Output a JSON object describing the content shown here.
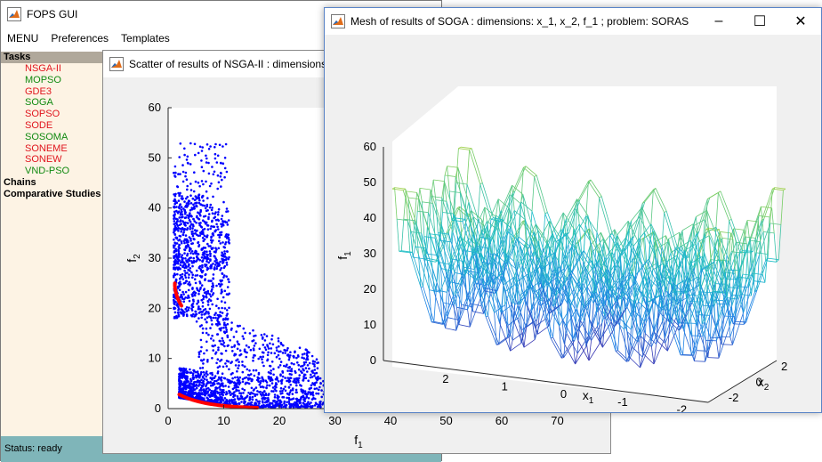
{
  "main_window": {
    "title": "FOPS GUI",
    "menu": [
      "MENU",
      "Preferences",
      "Templates"
    ],
    "tasks_header": "Tasks",
    "tasks": [
      {
        "label": "NSGA-II",
        "color": "#e0161e"
      },
      {
        "label": "MOPSO",
        "color": "#118a11"
      },
      {
        "label": "GDE3",
        "color": "#e0161e"
      },
      {
        "label": "SOGA",
        "color": "#118a11"
      },
      {
        "label": "SOPSO",
        "color": "#e0161e"
      },
      {
        "label": "SODE",
        "color": "#e0161e"
      },
      {
        "label": "SOSOMA",
        "color": "#118a11"
      },
      {
        "label": "SONEME",
        "color": "#e0161e"
      },
      {
        "label": "SONEW",
        "color": "#e0161e"
      },
      {
        "label": "VND-PSO",
        "color": "#118a11"
      }
    ],
    "sections": [
      "Chains",
      "Comparative Studies"
    ],
    "status": "Status: ready"
  },
  "scatter_window": {
    "title": "Scatter of results of NSGA-II : dimensions:",
    "chart_data": {
      "type": "scatter",
      "xlabel": "f",
      "xlabel_sub": "1",
      "ylabel": "f",
      "ylabel_sub": "2",
      "xlim": [
        0,
        80
      ],
      "ylim": [
        0,
        60
      ],
      "xticks": [
        "0",
        "10",
        "20",
        "30",
        "40",
        "50",
        "60",
        "70"
      ],
      "yticks": [
        "0",
        "10",
        "20",
        "30",
        "40",
        "50",
        "60"
      ],
      "point_color": "#0000ff",
      "front_color": "#ff0000"
    }
  },
  "mesh_window": {
    "title": "Mesh of results of SOGA : dimensions:  x_1, x_2, f_1 ; problem:  SORAS",
    "controls": {
      "minimize": "–",
      "maximize": "☐",
      "close": "✕"
    },
    "chart_data": {
      "type": "mesh",
      "zlabel": "f",
      "zlabel_sub": "1",
      "xlabel": "x",
      "xlabel_sub": "1",
      "ylabel": "x",
      "ylabel_sub": "2",
      "zlim": [
        0,
        60
      ],
      "zticks": [
        "0",
        "10",
        "20",
        "30",
        "40",
        "50",
        "60"
      ],
      "xticks": [
        "2",
        "1",
        "0",
        "-1",
        "-2"
      ],
      "yticks": [
        "-2",
        "0",
        "2"
      ]
    }
  }
}
